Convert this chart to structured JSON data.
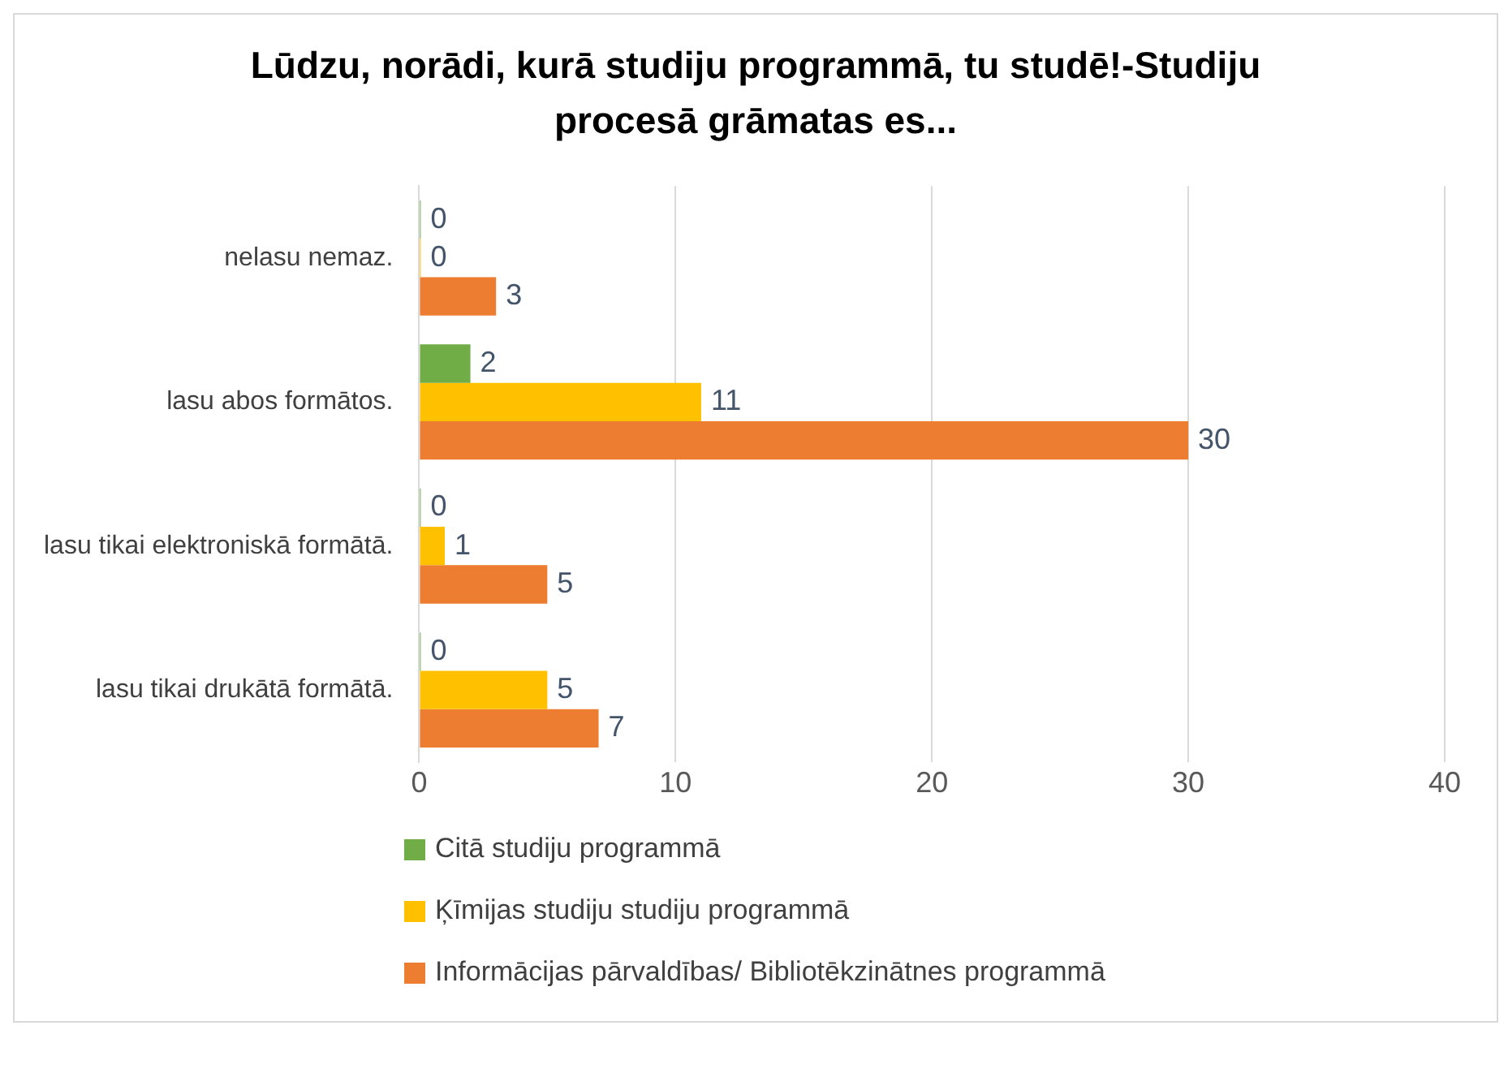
{
  "chart_data": {
    "type": "bar",
    "orientation": "horizontal",
    "title": "Lūdzu, norādi, kurā studiju programmā, tu studē!-Studiju procesā grāmatas es...",
    "categories": [
      "nelasu nemaz.",
      "lasu abos formātos.",
      "lasu tikai elektroniskā formātā.",
      "lasu tikai drukātā formātā."
    ],
    "series": [
      {
        "name": "Citā studiju programmā",
        "color": "#70ad47",
        "values": [
          0,
          2,
          0,
          0
        ]
      },
      {
        "name": "Ķīmijas studiju studiju programmā",
        "color": "#ffc000",
        "values": [
          0,
          11,
          1,
          5
        ]
      },
      {
        "name": "Informācijas pārvaldības/ Bibliotēkzinātnes programmā",
        "color": "#ed7d31",
        "values": [
          3,
          30,
          5,
          7
        ]
      }
    ],
    "xlim": [
      0,
      40
    ],
    "xticks": [
      0,
      10,
      20,
      30,
      40
    ],
    "grid": "x",
    "legend": "bottom",
    "data_labels": true
  }
}
